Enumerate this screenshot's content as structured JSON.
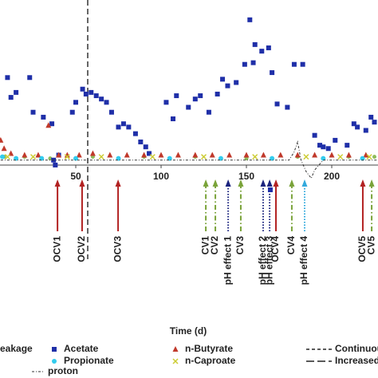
{
  "chart_data": {
    "type": "scatter",
    "xlabel": "Time (d)",
    "xlim": [
      5.6,
      227.1
    ],
    "ylim": [
      -15,
      100
    ],
    "xticks": [
      50,
      100,
      150,
      200
    ],
    "vlines": [
      57
    ],
    "series": [
      {
        "name": "eakage",
        "color": "#8fbc5a",
        "marker": "circle",
        "x": [
          8,
          20,
          35,
          60,
          90,
          120,
          150,
          180,
          210,
          225
        ],
        "values": [
          5,
          5,
          4,
          5,
          5,
          5,
          4,
          5,
          5,
          5
        ]
      },
      {
        "name": "Acetate",
        "color": "#1f2fa8",
        "marker": "square",
        "x": [
          10,
          23,
          12,
          15,
          25,
          31,
          36,
          37,
          40,
          48,
          50,
          54,
          56,
          59,
          62,
          65,
          68,
          71,
          75,
          78,
          81,
          85,
          88,
          91,
          93,
          103,
          107,
          109,
          116,
          120,
          123,
          128,
          133,
          136,
          139,
          144,
          149,
          152,
          154,
          155,
          159,
          163,
          165,
          168,
          174,
          178,
          183,
          190,
          193,
          195,
          198,
          202,
          209,
          213,
          215,
          220,
          223,
          225,
          164,
          38
        ],
        "values": [
          53,
          53,
          41,
          44,
          32,
          29,
          25,
          3,
          6,
          32,
          38,
          46,
          43,
          44,
          42,
          40,
          38,
          32,
          23,
          25,
          23,
          19,
          14,
          11,
          7,
          38,
          28,
          42,
          35,
          40,
          42,
          32,
          43,
          52,
          48,
          50,
          61,
          88,
          62,
          73,
          69,
          71,
          56,
          37,
          35,
          61,
          61,
          18,
          12,
          11,
          10,
          15,
          12,
          25,
          23,
          21,
          29,
          26,
          -15,
          0
        ]
      },
      {
        "name": "n-Butyrate",
        "color": "#c0392b",
        "marker": "triangle",
        "x": [
          6,
          8,
          12,
          20,
          28,
          34,
          40,
          45,
          52,
          60,
          70,
          80,
          90,
          100,
          110,
          120,
          130,
          140,
          150,
          160,
          170,
          180,
          190,
          200,
          210,
          220
        ],
        "values": [
          15,
          10,
          7,
          6,
          6,
          24,
          6,
          6,
          6,
          7,
          6,
          6,
          6,
          6,
          6,
          6,
          6,
          6,
          6,
          6,
          6,
          6,
          6,
          6,
          6,
          6
        ]
      },
      {
        "name": "Propionate",
        "color": "#33ccee",
        "marker": "star",
        "x": [
          7,
          15,
          30,
          50,
          75,
          105,
          135,
          165,
          195,
          218
        ],
        "values": [
          5,
          4,
          4,
          4,
          4,
          4,
          4,
          4,
          4,
          4
        ]
      },
      {
        "name": "n-Caproate",
        "color": "#cccc33",
        "marker": "cross",
        "x": [
          10,
          25,
          45,
          65,
          95,
          125,
          155,
          185,
          205,
          222
        ],
        "values": [
          5,
          5,
          5,
          5,
          5,
          5,
          5,
          5,
          5,
          5
        ]
      },
      {
        "name": "proton",
        "color": "#333333",
        "marker": "line",
        "x": [
          6,
          30,
          60,
          90,
          120,
          150,
          175,
          178,
          180,
          182,
          185,
          188,
          190,
          195,
          210,
          227
        ],
        "values": [
          3,
          3,
          3,
          3,
          3,
          3,
          3,
          8,
          14,
          3,
          -4,
          -8,
          -3,
          3,
          3,
          3
        ]
      }
    ],
    "line_legend": [
      {
        "name": "Continuou",
        "dash": "4 3"
      },
      {
        "name": "Increased",
        "dash": "10 4"
      }
    ],
    "annotations": [
      {
        "x": 39.3,
        "text": "OCV1",
        "color": "#b22222",
        "style": "solid"
      },
      {
        "x": 53.7,
        "text": "OCV2",
        "color": "#b22222",
        "style": "solid"
      },
      {
        "x": 74.8,
        "text": "OCV3",
        "color": "#b22222",
        "style": "solid"
      },
      {
        "x": 126.2,
        "text": "CV1",
        "color": "#7aa33a",
        "style": "dashdot"
      },
      {
        "x": 131.8,
        "text": "CV2",
        "color": "#7aa33a",
        "style": "dashdot"
      },
      {
        "x": 139.3,
        "text": "pH effect 1",
        "color": "#1a237e",
        "style": "dotted"
      },
      {
        "x": 146.7,
        "text": "CV3",
        "color": "#7aa33a",
        "style": "dashdot"
      },
      {
        "x": 159.8,
        "text": "pH effect 2",
        "color": "#1a237e",
        "style": "dotted"
      },
      {
        "x": 163.6,
        "text": "pH effect 3",
        "color": "#1a237e",
        "style": "dotted"
      },
      {
        "x": 167.3,
        "text": "OCV4",
        "color": "#b22222",
        "style": "solid"
      },
      {
        "x": 176.6,
        "text": "CV4",
        "color": "#7aa33a",
        "style": "dashdot"
      },
      {
        "x": 184.1,
        "text": "pH effect 4",
        "color": "#33aadd",
        "style": "dotted"
      },
      {
        "x": 218.2,
        "text": "OCV5",
        "color": "#b22222",
        "style": "solid"
      },
      {
        "x": 223.4,
        "text": "CV5",
        "color": "#7aa33a",
        "style": "dashdot"
      }
    ]
  }
}
